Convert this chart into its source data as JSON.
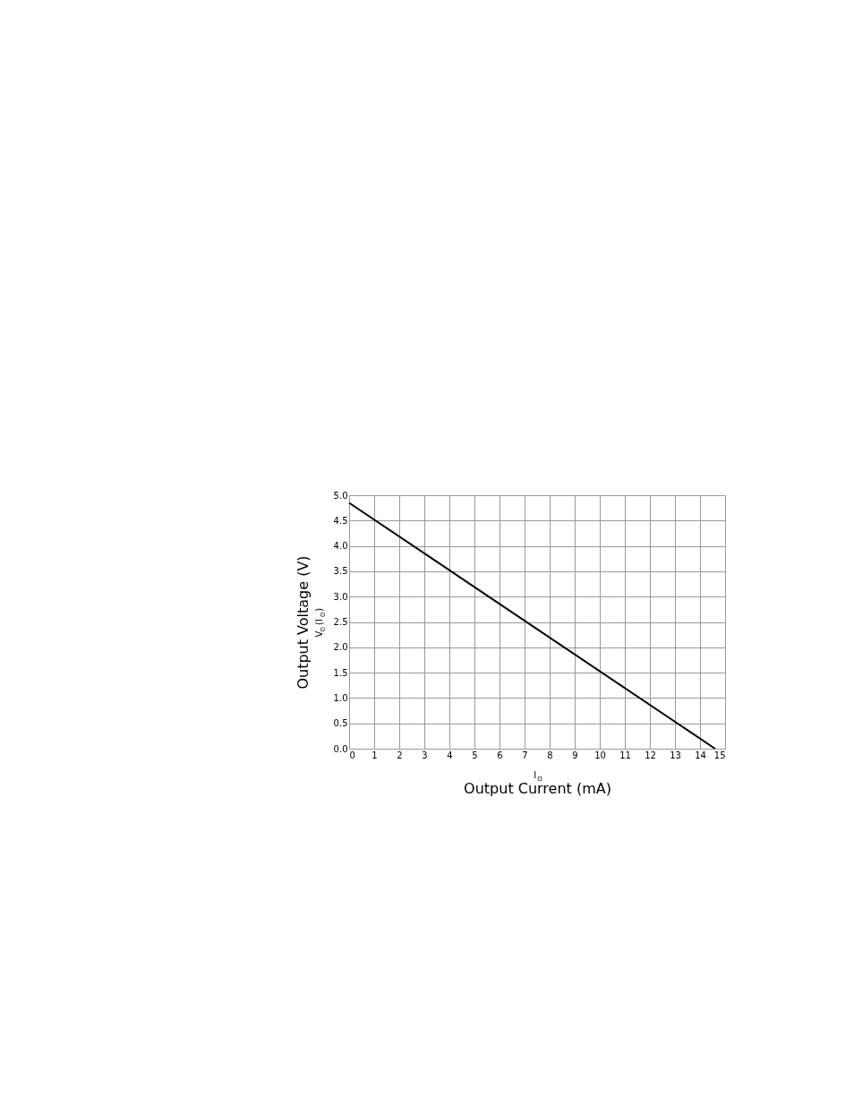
{
  "chart_data": {
    "type": "line",
    "x": [
      0,
      14.6
    ],
    "series": [
      {
        "color": "#000000",
        "values": [
          4.85,
          0
        ]
      }
    ],
    "xlim": [
      0,
      15
    ],
    "xticks": [
      0,
      1,
      2,
      3,
      4,
      5,
      6,
      7,
      8,
      9,
      10,
      11,
      12,
      13,
      14,
      15
    ],
    "ylim": [
      0,
      5
    ],
    "yticks": [
      {
        "value": 0,
        "label": "0.0"
      },
      {
        "value": 0.5,
        "label": "0.5"
      },
      {
        "value": 1,
        "label": "1.0"
      },
      {
        "value": 1.5,
        "label": "1.5"
      },
      {
        "value": 2,
        "label": "2.0"
      },
      {
        "value": 2.5,
        "label": "2.5"
      },
      {
        "value": 3,
        "label": "3.0"
      },
      {
        "value": 3.5,
        "label": "3.5"
      },
      {
        "value": 4,
        "label": "4.0"
      },
      {
        "value": 4.5,
        "label": "4.5"
      },
      {
        "value": 5,
        "label": "5.0"
      }
    ],
    "xlabel": "Output Current (mA)",
    "ylabel": "Output Voltage (V)",
    "annotations": [
      "V$_{O}$(I$_{O}$)",
      "I$_{O}$"
    ],
    "grid": true,
    "marker": "none",
    "line_style": "solid"
  }
}
